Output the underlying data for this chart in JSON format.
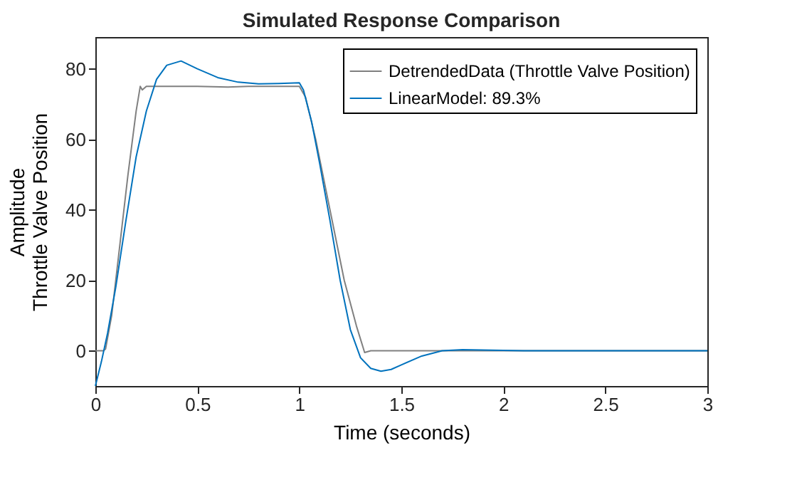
{
  "chart_data": {
    "type": "line",
    "title": "Simulated Response Comparison",
    "xlabel": "Time (seconds)",
    "ylabel": "Amplitude\nThrottle Valve Position",
    "xlim": [
      0,
      3
    ],
    "ylim": [
      -10,
      89
    ],
    "xticks": [
      0,
      0.5,
      1,
      1.5,
      2,
      2.5,
      3
    ],
    "yticks": [
      0,
      20,
      40,
      60,
      80
    ],
    "grid": false,
    "legend": "top right",
    "line_style": "solid",
    "marker": "none",
    "series": [
      {
        "name": "DetrendedData (Throttle Valve Position)",
        "color": "#808080",
        "x": [
          0,
          0.04,
          0.05,
          0.08,
          0.12,
          0.16,
          0.2,
          0.22,
          0.23,
          0.25,
          0.35,
          0.5,
          0.65,
          0.75,
          0.9,
          1.0,
          1.03,
          1.08,
          1.15,
          1.22,
          1.28,
          1.32,
          1.35,
          1.5,
          2,
          2.5,
          3
        ],
        "values": [
          0,
          0,
          0.5,
          10,
          30,
          50,
          68,
          75,
          74,
          75,
          75,
          75,
          74.8,
          75,
          75,
          75,
          72,
          60,
          40,
          20,
          7,
          -0.5,
          0,
          0,
          0,
          0,
          0
        ]
      },
      {
        "name": "LinearModel: 89.3%",
        "color": "#0072bd",
        "x": [
          0,
          0.03,
          0.06,
          0.1,
          0.15,
          0.2,
          0.25,
          0.3,
          0.35,
          0.42,
          0.5,
          0.6,
          0.7,
          0.8,
          0.9,
          1.0,
          1.02,
          1.06,
          1.1,
          1.15,
          1.2,
          1.25,
          1.3,
          1.35,
          1.4,
          1.45,
          1.5,
          1.6,
          1.7,
          1.8,
          1.9,
          2.1,
          3
        ],
        "values": [
          -10,
          -3,
          5,
          18,
          37,
          55,
          68,
          77,
          81,
          82.2,
          80,
          77.5,
          76.2,
          75.7,
          75.8,
          76,
          74,
          65,
          53,
          37,
          20,
          6,
          -2,
          -5,
          -5.8,
          -5.3,
          -4,
          -1.5,
          0,
          0.3,
          0.2,
          0,
          0
        ]
      }
    ]
  }
}
